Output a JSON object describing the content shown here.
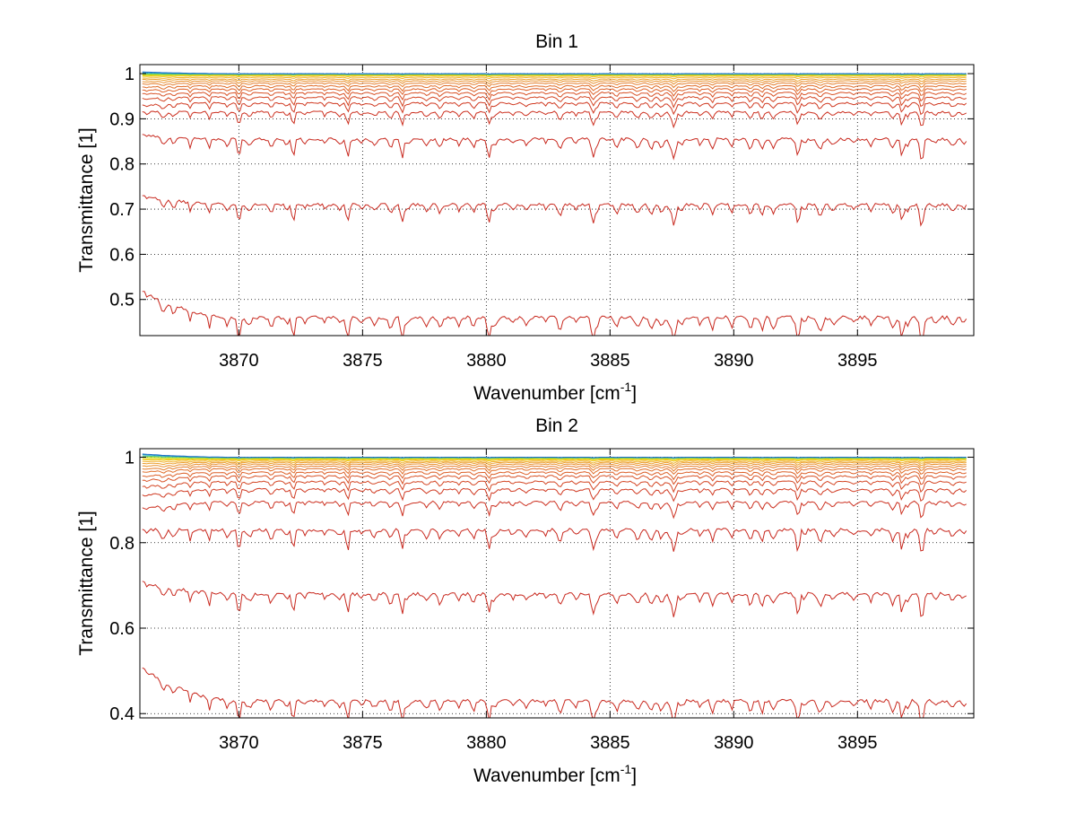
{
  "chart_data": [
    {
      "type": "line",
      "title": "Bin 1",
      "xlabel": "Wavenumber [cm",
      "xlabel_sup": "-1",
      "xlabel_end": "]",
      "ylabel": "Transmittance [1]",
      "xlim": [
        3866,
        3899.7
      ],
      "ylim": [
        0.42,
        1.02
      ],
      "xticks": [
        3870,
        3875,
        3880,
        3885,
        3890,
        3895
      ],
      "yticks": [
        0.5,
        0.6,
        0.7,
        0.8,
        0.9,
        1
      ],
      "ytick_labels": [
        "0.5",
        "0.6",
        "0.7",
        "0.8",
        "0.9",
        "1"
      ],
      "grid": true,
      "series": [
        {
          "color": "#c8281e",
          "baseline": 0.46,
          "start": 0.52,
          "depth": 0.03
        },
        {
          "color": "#c8281e",
          "baseline": 0.71,
          "start": 0.73,
          "depth": 0.025
        },
        {
          "color": "#c8281e",
          "baseline": 0.855,
          "start": 0.865,
          "depth": 0.025
        },
        {
          "color": "#cc3020",
          "baseline": 0.915,
          "start": 0.915,
          "depth": 0.018
        },
        {
          "color": "#d03a22",
          "baseline": 0.935,
          "start": 0.93,
          "depth": 0.014
        },
        {
          "color": "#d44624",
          "baseline": 0.948,
          "start": 0.945,
          "depth": 0.012
        },
        {
          "color": "#d85226",
          "baseline": 0.958,
          "start": 0.955,
          "depth": 0.01
        },
        {
          "color": "#dc6028",
          "baseline": 0.966,
          "start": 0.963,
          "depth": 0.008
        },
        {
          "color": "#e06e2a",
          "baseline": 0.973,
          "start": 0.97,
          "depth": 0.007
        },
        {
          "color": "#e47e2c",
          "baseline": 0.979,
          "start": 0.977,
          "depth": 0.005
        },
        {
          "color": "#e8902e",
          "baseline": 0.984,
          "start": 0.982,
          "depth": 0.004
        },
        {
          "color": "#eca030",
          "baseline": 0.988,
          "start": 0.987,
          "depth": 0.003
        },
        {
          "color": "#f0b232",
          "baseline": 0.992,
          "start": 0.99,
          "depth": 0.002
        },
        {
          "color": "#f2c21e",
          "baseline": 0.995,
          "start": 0.994,
          "depth": 0.0015
        },
        {
          "color": "#e6d80a",
          "baseline": 0.997,
          "start": 0.996,
          "depth": 0.001
        },
        {
          "color": "#b4dc1e",
          "baseline": 0.998,
          "start": 0.998,
          "depth": 0.0008
        },
        {
          "color": "#50c878",
          "baseline": 0.999,
          "start": 1.0,
          "depth": 0.0006
        },
        {
          "color": "#20a0c8",
          "baseline": 0.9995,
          "start": 1.002,
          "depth": 0.0005
        },
        {
          "color": "#1e6ec8",
          "baseline": 1.0,
          "start": 1.004,
          "depth": 0.0004
        }
      ]
    },
    {
      "type": "line",
      "title": "Bin 2",
      "xlabel": "Wavenumber [cm",
      "xlabel_sup": "-1",
      "xlabel_end": "]",
      "ylabel": "Transmittance [1]",
      "xlim": [
        3866,
        3899.7
      ],
      "ylim": [
        0.39,
        1.02
      ],
      "xticks": [
        3870,
        3875,
        3880,
        3885,
        3890,
        3895
      ],
      "yticks": [
        0.4,
        0.6,
        0.8,
        1
      ],
      "ytick_labels": [
        "0.4",
        "0.6",
        "0.8",
        "1"
      ],
      "grid": true,
      "series": [
        {
          "color": "#c8281e",
          "baseline": 0.43,
          "start": 0.51,
          "depth": 0.03
        },
        {
          "color": "#c8281e",
          "baseline": 0.68,
          "start": 0.71,
          "depth": 0.03
        },
        {
          "color": "#c8281e",
          "baseline": 0.83,
          "start": 0.83,
          "depth": 0.03
        },
        {
          "color": "#cc3020",
          "baseline": 0.895,
          "start": 0.88,
          "depth": 0.02
        },
        {
          "color": "#d03a22",
          "baseline": 0.925,
          "start": 0.91,
          "depth": 0.016
        },
        {
          "color": "#d44624",
          "baseline": 0.943,
          "start": 0.93,
          "depth": 0.013
        },
        {
          "color": "#d85226",
          "baseline": 0.956,
          "start": 0.945,
          "depth": 0.011
        },
        {
          "color": "#dc6028",
          "baseline": 0.965,
          "start": 0.955,
          "depth": 0.009
        },
        {
          "color": "#e06e2a",
          "baseline": 0.973,
          "start": 0.965,
          "depth": 0.007
        },
        {
          "color": "#e47e2c",
          "baseline": 0.979,
          "start": 0.972,
          "depth": 0.006
        },
        {
          "color": "#e8902e",
          "baseline": 0.984,
          "start": 0.979,
          "depth": 0.005
        },
        {
          "color": "#eca030",
          "baseline": 0.988,
          "start": 0.985,
          "depth": 0.004
        },
        {
          "color": "#f0b232",
          "baseline": 0.991,
          "start": 0.99,
          "depth": 0.003
        },
        {
          "color": "#f2c21e",
          "baseline": 0.994,
          "start": 0.994,
          "depth": 0.002
        },
        {
          "color": "#e6d80a",
          "baseline": 0.996,
          "start": 0.997,
          "depth": 0.0015
        },
        {
          "color": "#b4dc1e",
          "baseline": 0.998,
          "start": 1.0,
          "depth": 0.001
        },
        {
          "color": "#50c878",
          "baseline": 0.999,
          "start": 1.003,
          "depth": 0.0008
        },
        {
          "color": "#20a0c8",
          "baseline": 0.9995,
          "start": 1.006,
          "depth": 0.0006
        },
        {
          "color": "#1e6ec8",
          "baseline": 1.0,
          "start": 1.008,
          "depth": 0.0005
        }
      ]
    }
  ]
}
